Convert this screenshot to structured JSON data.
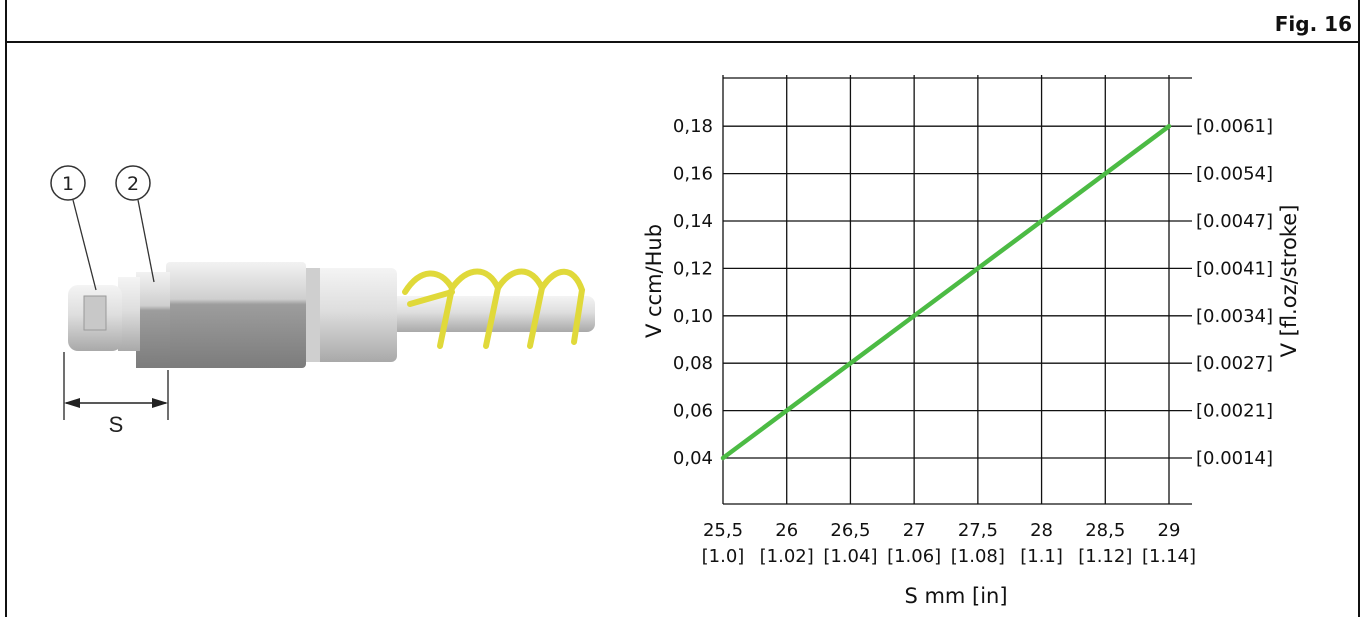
{
  "figure": {
    "label": "Fig. 16",
    "callouts": [
      "1",
      "2"
    ],
    "dimension_label": "S",
    "colors": {
      "spring": "#e0d93a",
      "body": "#d8d8d8",
      "line": "#4cbb44"
    }
  },
  "chart_data": {
    "type": "line",
    "title": "",
    "xlabel": "S mm [in]",
    "ylabel": "V ccm/Hub",
    "y2label": "V [fl.oz/stroke]",
    "xlim": [
      25.5,
      29
    ],
    "ylim": [
      0.04,
      0.2
    ],
    "grid": true,
    "x_ticks": [
      {
        "value": 25.5,
        "label": "25,5",
        "sub": "[1.0]"
      },
      {
        "value": 26,
        "label": "26",
        "sub": "[1.02]"
      },
      {
        "value": 26.5,
        "label": "26,5",
        "sub": "[1.04]"
      },
      {
        "value": 27,
        "label": "27",
        "sub": "[1.06]"
      },
      {
        "value": 27.5,
        "label": "27,5",
        "sub": "[1.08]"
      },
      {
        "value": 28,
        "label": "28",
        "sub": "[1.1]"
      },
      {
        "value": 28.5,
        "label": "28,5",
        "sub": "[1.12]"
      },
      {
        "value": 29,
        "label": "29",
        "sub": "[1.14]"
      }
    ],
    "y_ticks": [
      {
        "value": 0.04,
        "label": "0,04",
        "right": "[0.0014]"
      },
      {
        "value": 0.06,
        "label": "0,06",
        "right": "[0.0021]"
      },
      {
        "value": 0.08,
        "label": "0,08",
        "right": "[0.0027]"
      },
      {
        "value": 0.1,
        "label": "0,10",
        "right": "[0.0034]"
      },
      {
        "value": 0.12,
        "label": "0,12",
        "right": "[0.0041]"
      },
      {
        "value": 0.14,
        "label": "0,14",
        "right": "[0.0047]"
      },
      {
        "value": 0.16,
        "label": "0,16",
        "right": "[0.0054]"
      },
      {
        "value": 0.18,
        "label": "0,18",
        "right": "[0.0061]"
      }
    ],
    "series": [
      {
        "x": [
          25.5,
          29
        ],
        "y": [
          0.04,
          0.18
        ],
        "color": "#4cbb44"
      }
    ]
  }
}
